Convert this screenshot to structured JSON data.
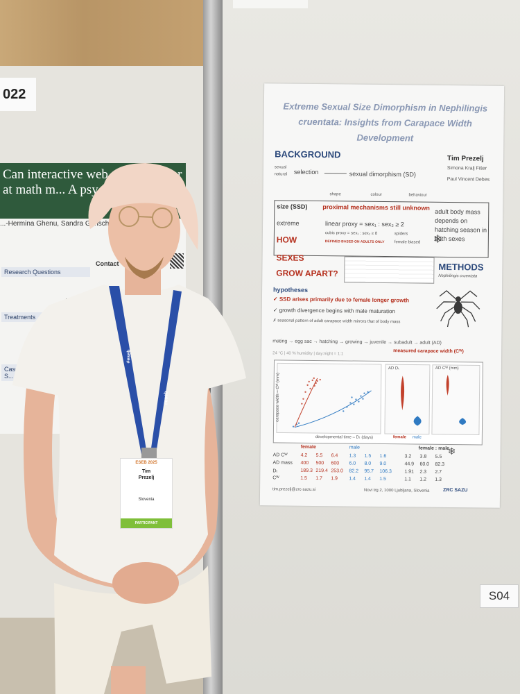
{
  "scene": {
    "year_card": "022",
    "board_id": "S04"
  },
  "left_poster": {
    "title": "Can interactive web apps ... better at math m... A psychologi...",
    "authors": "...-Hermina Ghenu, Sandra Grinschgl...",
    "section_research": "Research Questions",
    "section_treatments": "Treatments",
    "section_case": "Case S...",
    "contact": "Contact"
  },
  "poster": {
    "title_line1": "Extreme Sexual Size Dimorphism in Nephilingis",
    "title_line2": "cruentata: Insights from Carapace Width Development",
    "background_heading": "BACKGROUND",
    "author_main": "Tim Prezelj",
    "author_2": "Simona Kralj Fišer",
    "author_3": "Paul Vincent Debes",
    "selection": "selection",
    "sexual": "sexual",
    "natural": "natural",
    "sexual_dimorphism": "sexual dimorphism (SD)",
    "size_ssd": "size (SSD)",
    "shape": "shape",
    "colour": "colour",
    "behaviour": "behaviour",
    "proximal": "proximal mechanisms still unknown",
    "extreme": "extreme",
    "linear_proxy": "linear proxy = sex₁ : sex₂ ≥ 2",
    "cubic_proxy": "cubic proxy = sex₁ : sex₂ ≥ 8",
    "spiders": "spiders",
    "defined": "DEFINED BASED ON ADULTS ONLY",
    "female_biased": "female biased",
    "how": "HOW",
    "sexes": "SEXES",
    "grow_apart": "GROW APART?",
    "adult_mass_note": "adult body mass depends on hatching season in both sexes",
    "hypotheses_heading": "hypotheses",
    "hyp1": "SSD arises primarily due to female longer growth",
    "hyp2": "growth divergence begins with male maturation",
    "hyp3": "seasonal pattern of adult carapace width mirrors that of body mass",
    "methods_heading": "METHODS",
    "methods_species": "Nephilingis cruentata",
    "lifecycle": [
      "mating",
      "egg sac",
      "hatching",
      "growing",
      "juvenile → subadult → adult (AD)"
    ],
    "measured": "measured carapace width (Cᵂ)",
    "conditions": "24 °C | 40 % humidity | day:night = 1:1",
    "xaxis": "developmental time – Dₜ (days)",
    "yaxis": "carapace width – Cᵂ (mm)",
    "ad_dt": "AD Dₜ",
    "ad_cw": "AD Cᵂ (mm)",
    "female": "female",
    "male": "male",
    "ratio_heading": "female : male",
    "table_rows": [
      {
        "label": "AD Cᵂ",
        "f": [
          "4.2",
          "5.5",
          "6.4"
        ],
        "m": [
          "1.3",
          "1.5",
          "1.6"
        ],
        "r": [
          "3.2",
          "3.8",
          "5.5"
        ]
      },
      {
        "label": "AD mass",
        "f": [
          "400",
          "500",
          "600"
        ],
        "m": [
          "6.0",
          "8.0",
          "9.0"
        ],
        "r": [
          "44.9",
          "60.0",
          "82.3"
        ]
      },
      {
        "label": "Dₜ",
        "f": [
          "189.3",
          "219.4",
          "253.0"
        ],
        "m": [
          "82.2",
          "95.7",
          "106.3"
        ],
        "r": [
          "1.91",
          "2.3",
          "2.7"
        ]
      },
      {
        "label": "Cᵂ",
        "f": [
          "1.5",
          "1.7",
          "1.9"
        ],
        "m": [
          "1.4",
          "1.4",
          "1.5"
        ],
        "r": [
          "1.1",
          "1.2",
          "1.3"
        ]
      }
    ],
    "email": "tim.prezelj@zrc-sazu.si",
    "address": "Novi trg 2, 1000 Ljubljana, Slovenia",
    "institution": "ZRC SAZU"
  },
  "badge": {
    "name": "Tim\nPrezelj",
    "country": "Slovenia",
    "role": "PARTICIPANT",
    "logo": "ESEB 2025"
  },
  "lanyard_text": "#eseb",
  "colors": {
    "poster_blue": "#2d4a7c",
    "poster_red": "#b5301e",
    "lanyard": "#2a4fa8",
    "hat": "#f2d6c6",
    "shirt": "#f3f1ec"
  }
}
